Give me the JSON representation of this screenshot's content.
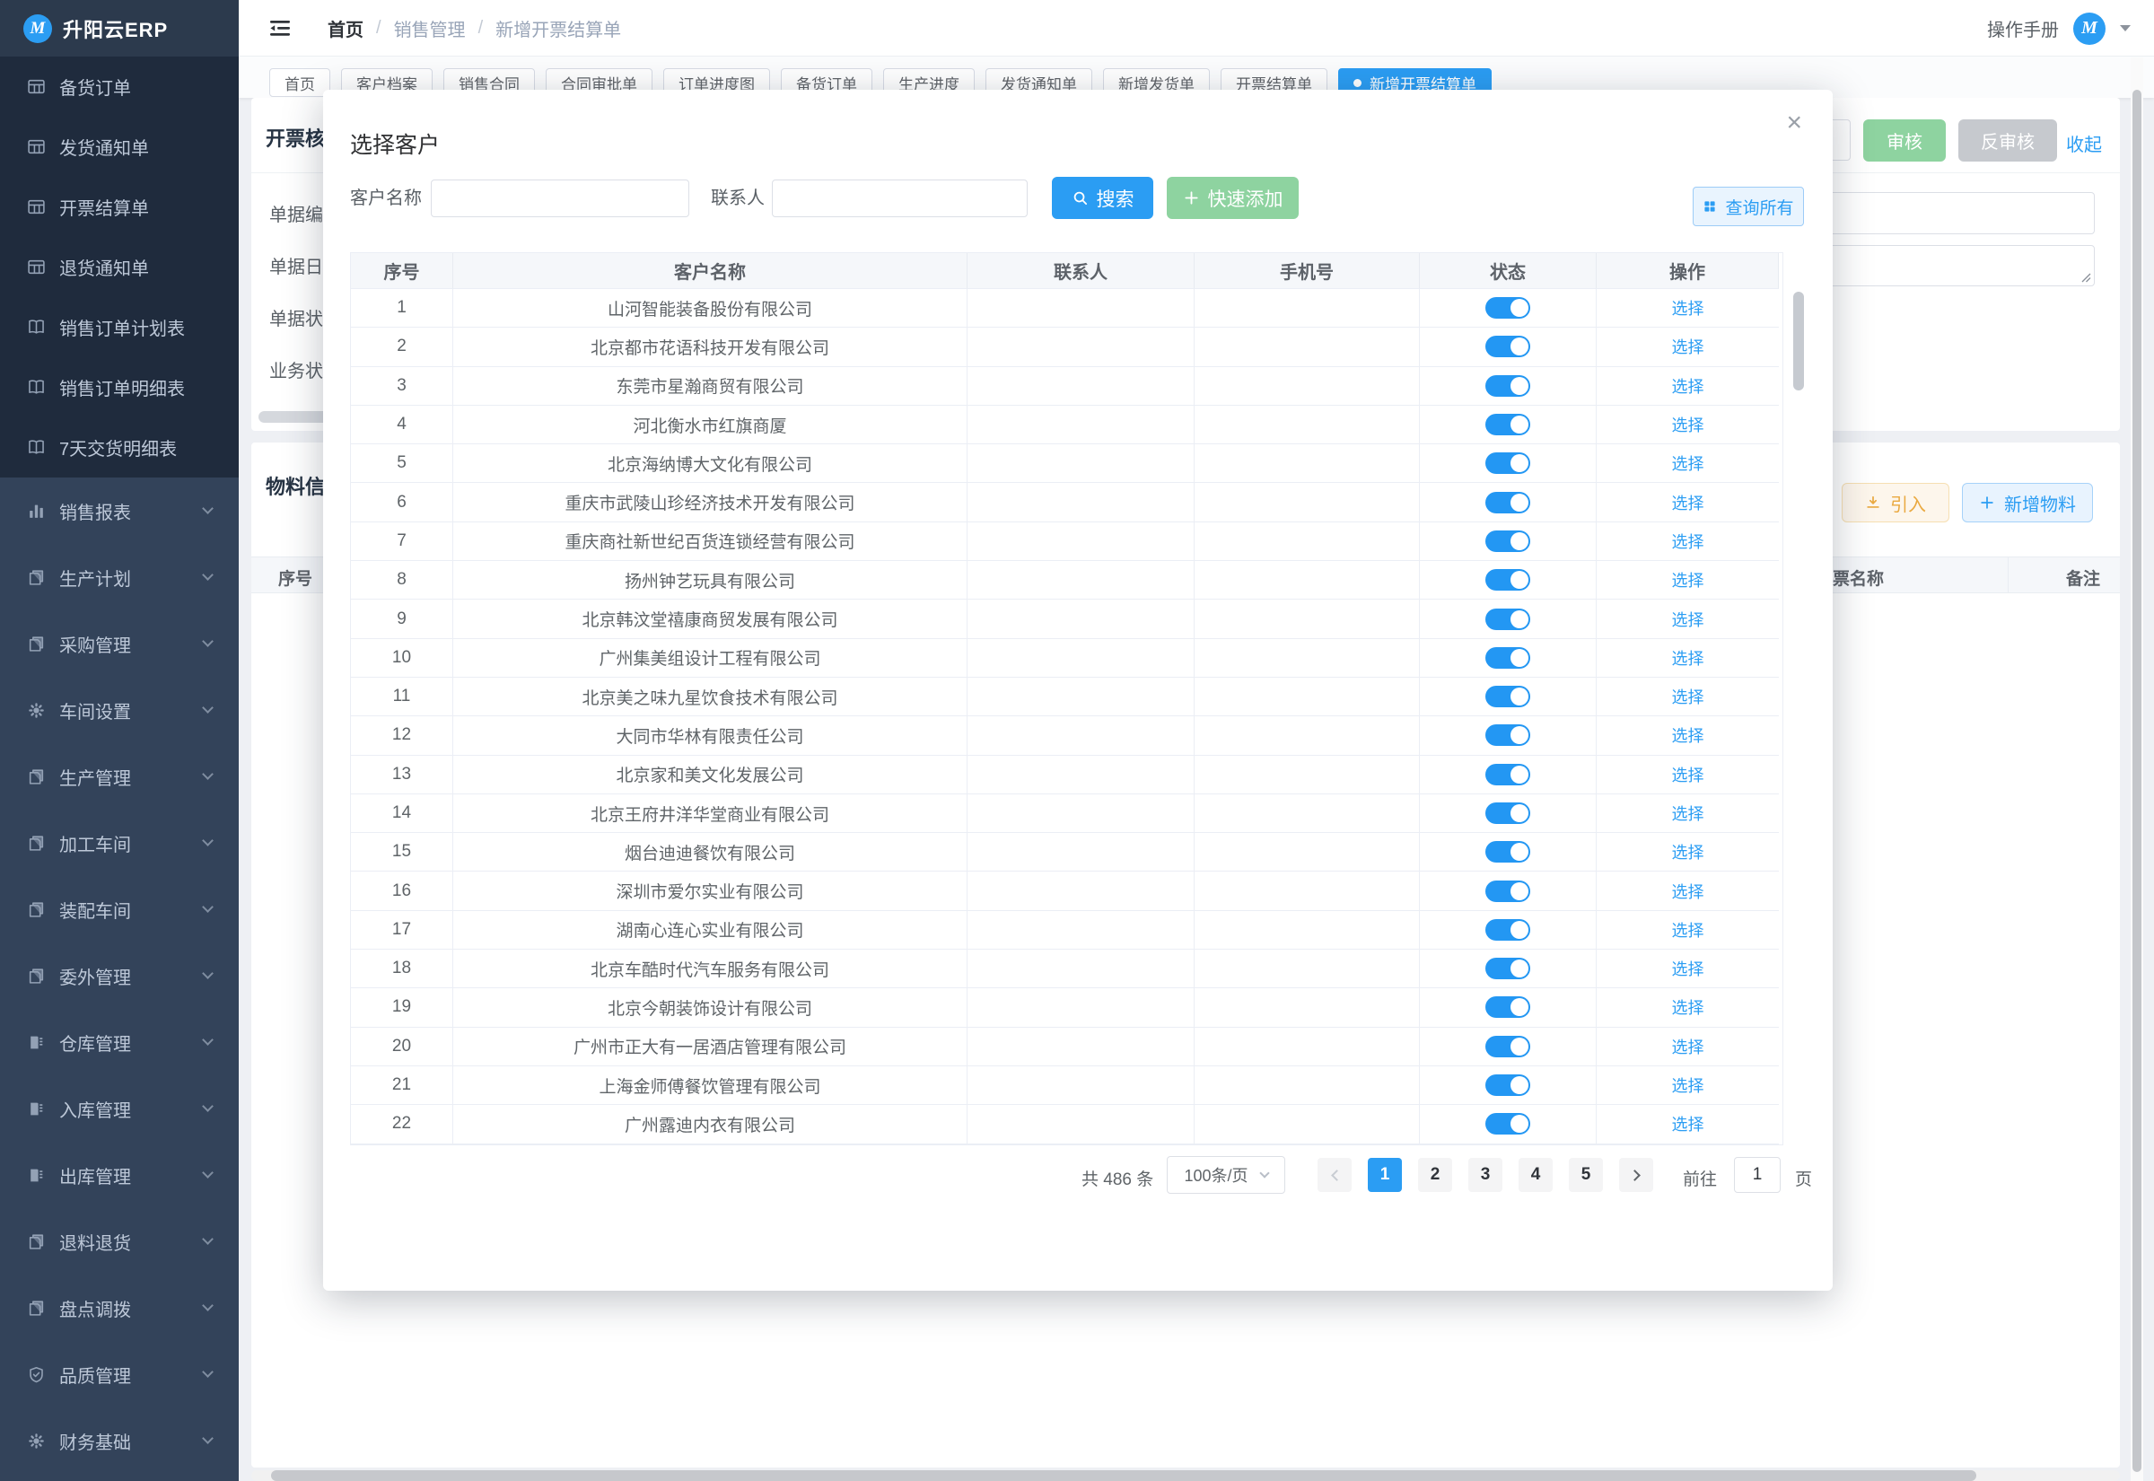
{
  "app": {
    "logo_text": "升阳云ERP",
    "manual_label": "操作手册",
    "avatar_letter": "M"
  },
  "breadcrumb": {
    "separator": "/",
    "items": [
      "首页",
      "销售管理",
      "新增开票结算单"
    ]
  },
  "sidebar": {
    "submenu_items": [
      {
        "label": "备货订单",
        "icon": "table"
      },
      {
        "label": "发货通知单",
        "icon": "table"
      },
      {
        "label": "开票结算单",
        "icon": "table"
      },
      {
        "label": "退货通知单",
        "icon": "table"
      },
      {
        "label": "销售订单计划表",
        "icon": "book"
      },
      {
        "label": "销售订单明细表",
        "icon": "book"
      },
      {
        "label": "7天交货明细表",
        "icon": "book"
      }
    ],
    "menu_items": [
      {
        "label": "销售报表",
        "icon": "chart"
      },
      {
        "label": "生产计划",
        "icon": "docs"
      },
      {
        "label": "采购管理",
        "icon": "docs"
      },
      {
        "label": "车间设置",
        "icon": "gear"
      },
      {
        "label": "生产管理",
        "icon": "docs"
      },
      {
        "label": "加工车间",
        "icon": "docs"
      },
      {
        "label": "装配车间",
        "icon": "docs"
      },
      {
        "label": "委外管理",
        "icon": "docs"
      },
      {
        "label": "仓库管理",
        "icon": "warehouse"
      },
      {
        "label": "入库管理",
        "icon": "warehouse"
      },
      {
        "label": "出库管理",
        "icon": "warehouse"
      },
      {
        "label": "退料退货",
        "icon": "docs"
      },
      {
        "label": "盘点调拨",
        "icon": "docs"
      },
      {
        "label": "品质管理",
        "icon": "shield"
      },
      {
        "label": "财务基础",
        "icon": "gear"
      }
    ]
  },
  "tabs": {
    "items": [
      "首页",
      "客户档案",
      "销售合同",
      "合同审批单",
      "订单进度图",
      "备货订单",
      "生产进度",
      "发货通知单",
      "新增发货单",
      "开票结算单"
    ],
    "active": "新增开票结算单"
  },
  "page": {
    "section_title": "开票核算",
    "form_labels": [
      "单据编码",
      "单据日期",
      "单据状态",
      "业务状态"
    ],
    "audit_label": "审核",
    "unaudit_label": "反审核",
    "collapse_label": "收起",
    "materials_title": "物料信息",
    "import_label": "引入",
    "add_material_label": "新增物料",
    "materials_cols": [
      "序号",
      "票名称",
      "备注"
    ]
  },
  "modal": {
    "title": "选择客户",
    "close_glyph": "×",
    "form": {
      "customer_label": "客户名称",
      "contact_label": "联系人",
      "search_label": "搜索",
      "quick_add_label": "快速添加",
      "query_all_label": "查询所有"
    },
    "table": {
      "headers": [
        "序号",
        "客户名称",
        "联系人",
        "手机号",
        "状态",
        "操作"
      ],
      "action_label": "选择",
      "rows": [
        {
          "no": "1",
          "name": "山河智能装备股份有限公司",
          "contact": "",
          "phone": "",
          "status_on": true
        },
        {
          "no": "2",
          "name": "北京都市花语科技开发有限公司",
          "contact": "",
          "phone": "",
          "status_on": true
        },
        {
          "no": "3",
          "name": "东莞市星瀚商贸有限公司",
          "contact": "",
          "phone": "",
          "status_on": true
        },
        {
          "no": "4",
          "name": "河北衡水市红旗商厦",
          "contact": "",
          "phone": "",
          "status_on": true
        },
        {
          "no": "5",
          "name": "北京海纳博大文化有限公司",
          "contact": "",
          "phone": "",
          "status_on": true
        },
        {
          "no": "6",
          "name": "重庆市武陵山珍经济技术开发有限公司",
          "contact": "",
          "phone": "",
          "status_on": true
        },
        {
          "no": "7",
          "name": "重庆商社新世纪百货连锁经营有限公司",
          "contact": "",
          "phone": "",
          "status_on": true
        },
        {
          "no": "8",
          "name": "扬州钟艺玩具有限公司",
          "contact": "",
          "phone": "",
          "status_on": true
        },
        {
          "no": "9",
          "name": "北京韩汶堂禧康商贸发展有限公司",
          "contact": "",
          "phone": "",
          "status_on": true
        },
        {
          "no": "10",
          "name": "广州集美组设计工程有限公司",
          "contact": "",
          "phone": "",
          "status_on": true
        },
        {
          "no": "11",
          "name": "北京美之味九星饮食技术有限公司",
          "contact": "",
          "phone": "",
          "status_on": true
        },
        {
          "no": "12",
          "name": "大同市华林有限责任公司",
          "contact": "",
          "phone": "",
          "status_on": true
        },
        {
          "no": "13",
          "name": "北京家和美文化发展公司",
          "contact": "",
          "phone": "",
          "status_on": true
        },
        {
          "no": "14",
          "name": "北京王府井洋华堂商业有限公司",
          "contact": "",
          "phone": "",
          "status_on": true
        },
        {
          "no": "15",
          "name": "烟台迪迪餐饮有限公司",
          "contact": "",
          "phone": "",
          "status_on": true
        },
        {
          "no": "16",
          "name": "深圳市爱尔实业有限公司",
          "contact": "",
          "phone": "",
          "status_on": true
        },
        {
          "no": "17",
          "name": "湖南心连心实业有限公司",
          "contact": "",
          "phone": "",
          "status_on": true
        },
        {
          "no": "18",
          "name": "北京车酷时代汽车服务有限公司",
          "contact": "",
          "phone": "",
          "status_on": true
        },
        {
          "no": "19",
          "name": "北京今朝装饰设计有限公司",
          "contact": "",
          "phone": "",
          "status_on": true
        },
        {
          "no": "20",
          "name": "广州市正大有一居酒店管理有限公司",
          "contact": "",
          "phone": "",
          "status_on": true
        },
        {
          "no": "21",
          "name": "上海金师傅餐饮管理有限公司",
          "contact": "",
          "phone": "",
          "status_on": true
        },
        {
          "no": "22",
          "name": "广州露迪内衣有限公司",
          "contact": "",
          "phone": "",
          "status_on": true
        }
      ]
    },
    "pagination": {
      "total_text": "共 486 条",
      "page_size": "100条/页",
      "pages": [
        "1",
        "2",
        "3",
        "4",
        "5"
      ],
      "active_page": "1",
      "goto_label": "前往",
      "goto_value": "1",
      "unit_label": "页"
    }
  },
  "colors": {
    "primary": "#2b9df3",
    "success_soft": "#8ed3a0",
    "warning": "#eaa940",
    "switch_on": "#2397f3"
  }
}
